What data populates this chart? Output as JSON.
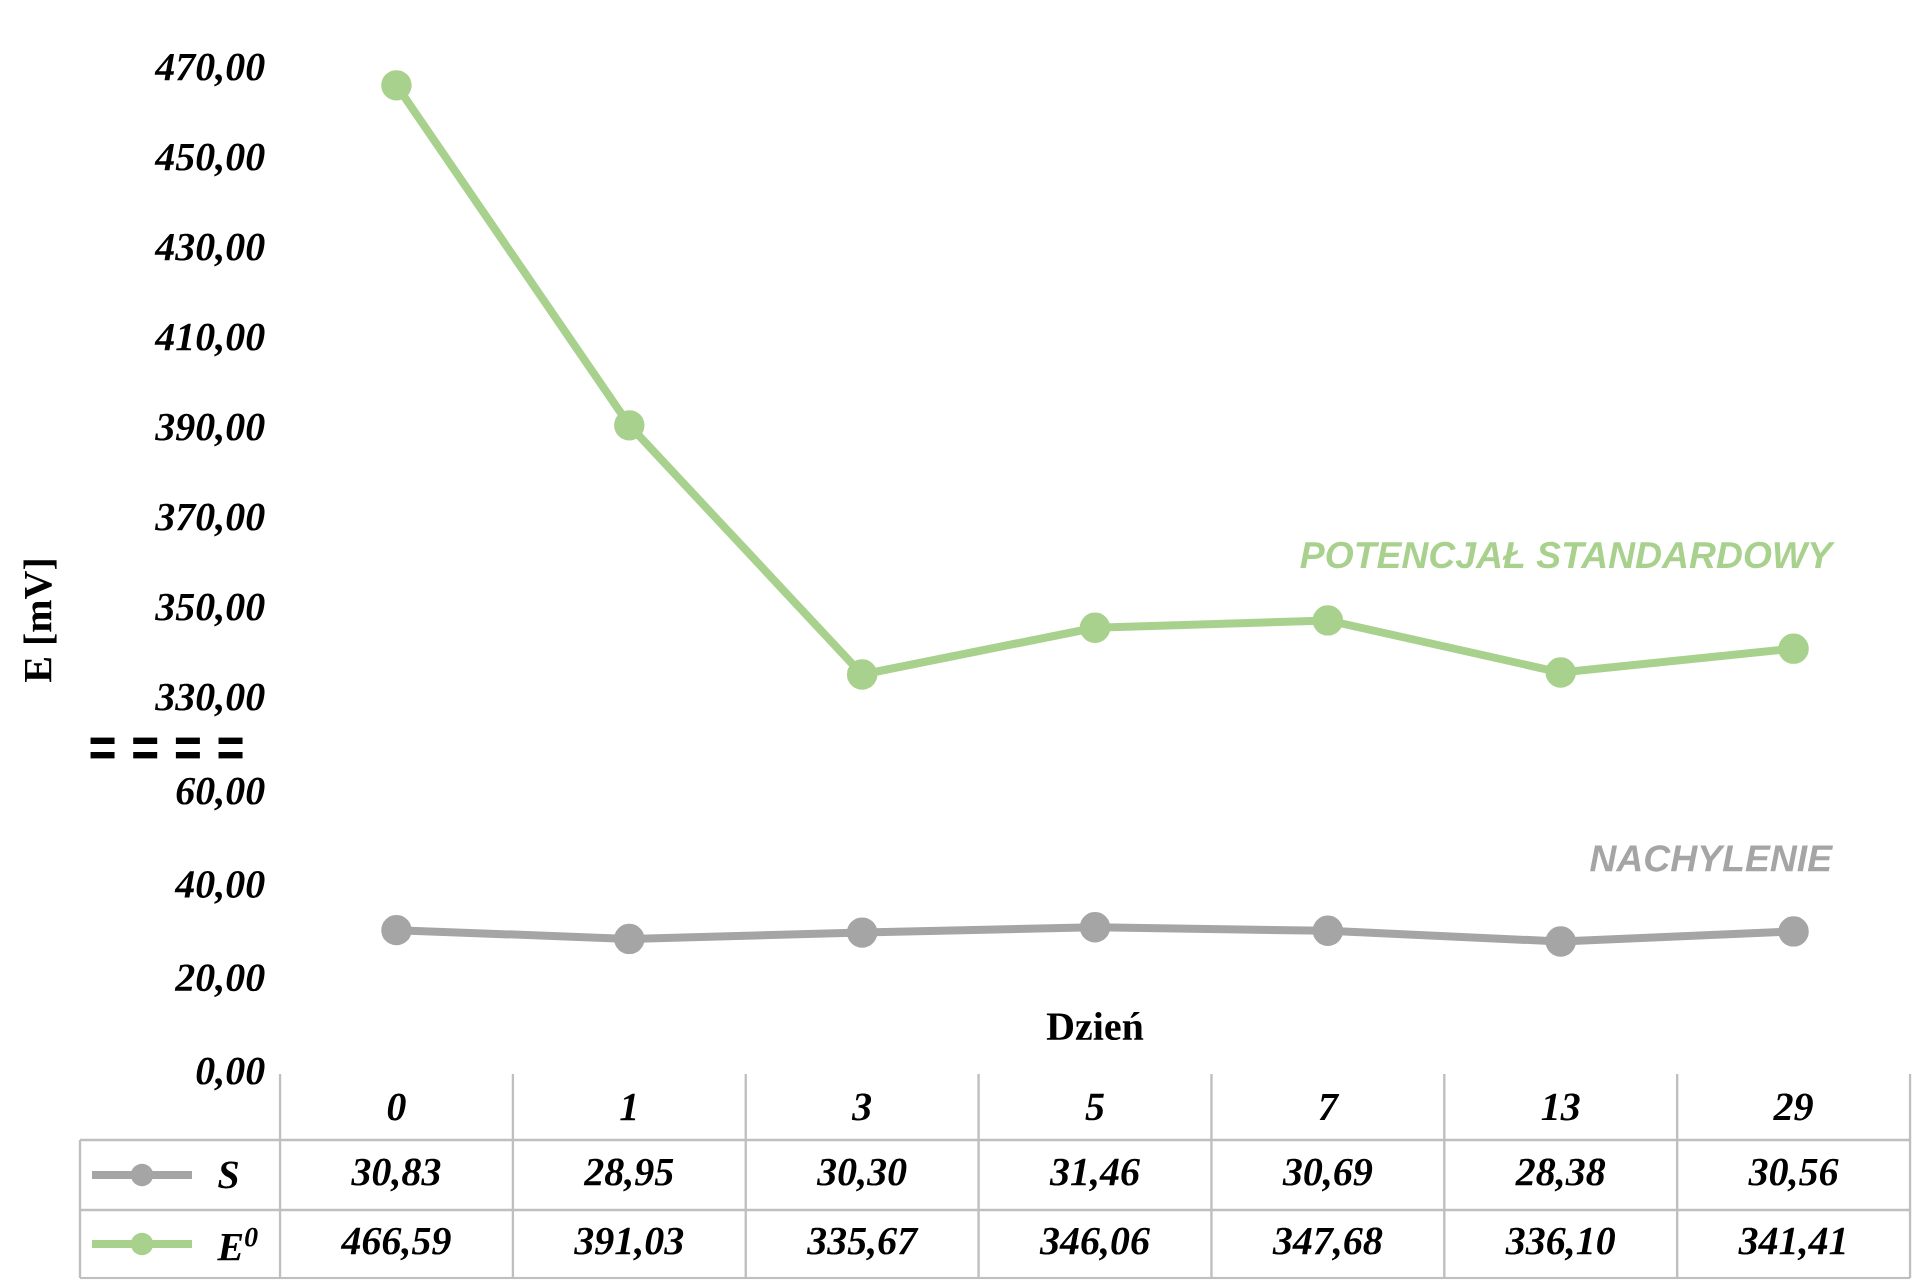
{
  "chart_data": [
    {
      "type": "line",
      "ylabel": "E [mV]",
      "categories": [
        "0",
        "1",
        "3",
        "5",
        "7",
        "13",
        "29"
      ],
      "series": [
        {
          "name": "E$^{0}$",
          "color": "#a9d18e",
          "values": [
            466.59,
            391.03,
            335.67,
            346.06,
            347.68,
            336.1,
            341.41
          ],
          "value_labels": [
            "466,59",
            "391,03",
            "335,67",
            "346,06",
            "347,68",
            "336,10",
            "341,41"
          ]
        }
      ],
      "ylim": [
        330,
        470
      ],
      "yticks": [
        {
          "value": 330,
          "label": "330,00"
        },
        {
          "value": 350,
          "label": "350,00"
        },
        {
          "value": 370,
          "label": "370,00"
        },
        {
          "value": 390,
          "label": "390,00"
        },
        {
          "value": 410,
          "label": "410,00"
        },
        {
          "value": 430,
          "label": "430,00"
        },
        {
          "value": 450,
          "label": "450,00"
        },
        {
          "value": 470,
          "label": "470,00"
        }
      ],
      "tick_labels": "y",
      "marker": "circle",
      "line_style": "solid",
      "annotations": [
        "POTENCJAŁ STANDARDOWY"
      ]
    },
    {
      "type": "line",
      "xlabel": "Dzień",
      "categories": [
        "0",
        "1",
        "3",
        "5",
        "7",
        "13",
        "29"
      ],
      "series": [
        {
          "name": "S",
          "color": "#a5a5a5",
          "values": [
            30.83,
            28.95,
            30.3,
            31.46,
            30.69,
            28.38,
            30.56
          ],
          "value_labels": [
            "30,83",
            "28,95",
            "30,30",
            "31,46",
            "30,69",
            "28,38",
            "30,56"
          ]
        }
      ],
      "ylim": [
        0,
        60
      ],
      "yticks": [
        {
          "value": 0,
          "label": "0,00"
        },
        {
          "value": 20,
          "label": "20,00"
        },
        {
          "value": 40,
          "label": "40,00"
        },
        {
          "value": 60,
          "label": "60,00"
        }
      ],
      "marker": "circle",
      "line_style": "solid",
      "annotations": [
        "NACHYLENIE"
      ]
    }
  ]
}
